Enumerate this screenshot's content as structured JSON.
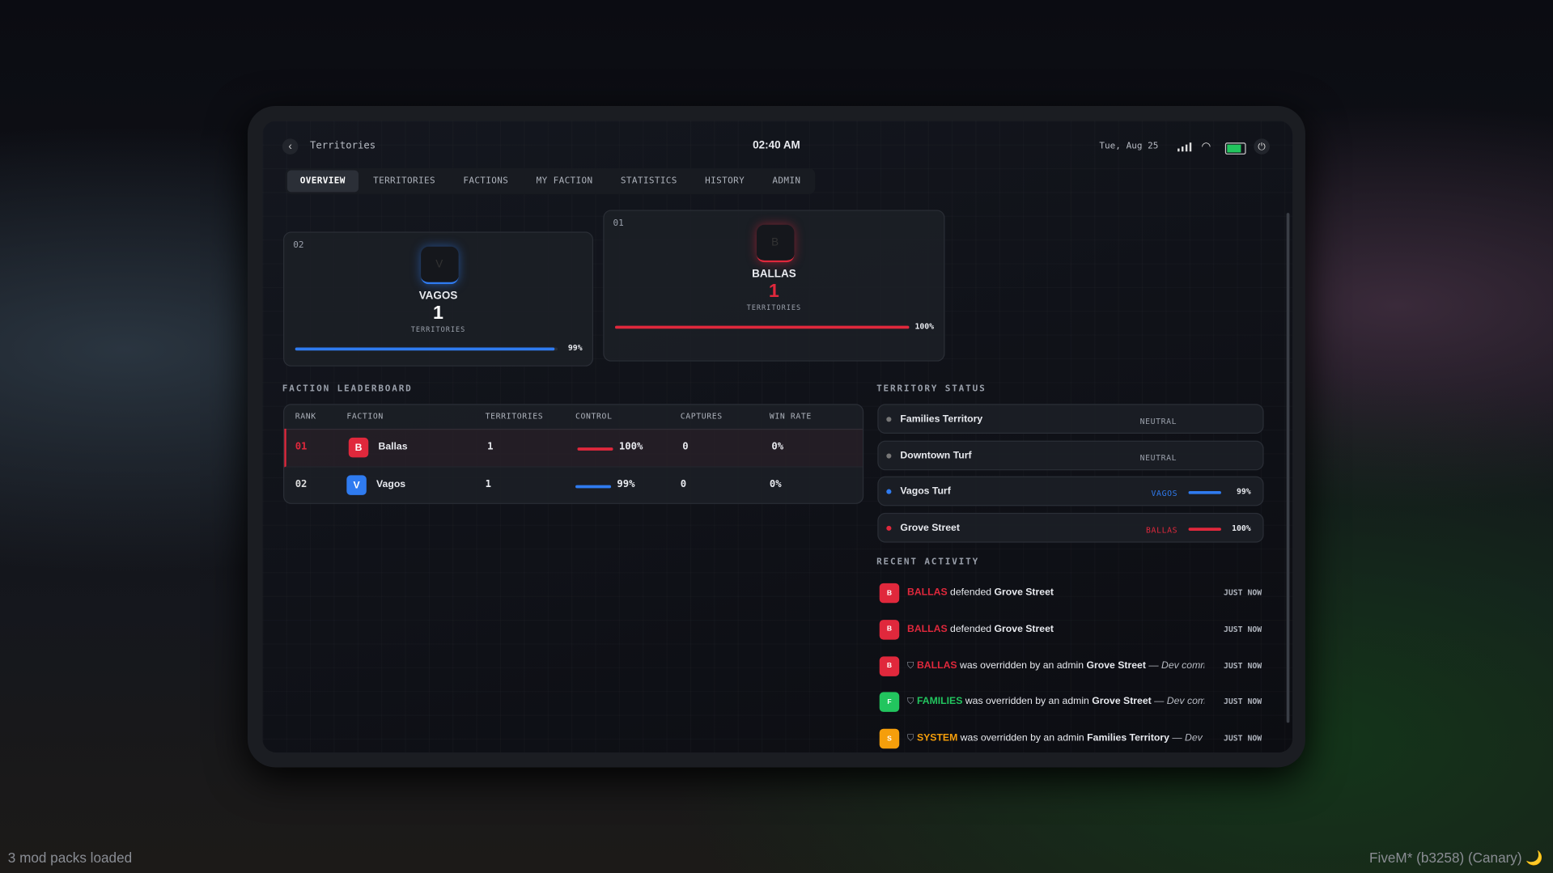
{
  "header": {
    "title": "Territories",
    "time": "02:40 AM",
    "date": "Tue, Aug 25"
  },
  "tabs": {
    "items": [
      "OVERVIEW",
      "TERRITORIES",
      "FACTIONS",
      "MY FACTION",
      "STATISTICS",
      "HISTORY",
      "ADMIN"
    ],
    "active": 0
  },
  "podium": [
    {
      "rank": "02",
      "letter": "V",
      "name": "VAGOS",
      "territories": 1,
      "territories_label": "TERRITORIES",
      "control": 99,
      "control_label": "99%",
      "color": "#2f7bf0"
    },
    {
      "rank": "01",
      "letter": "B",
      "name": "BALLAS",
      "territories": 1,
      "territories_label": "TERRITORIES",
      "control": 100,
      "control_label": "100%",
      "color": "#e0283c"
    }
  ],
  "leaderboard": {
    "title": "FACTION LEADERBOARD",
    "columns": [
      "RANK",
      "FACTION",
      "TERRITORIES",
      "CONTROL",
      "CAPTURES",
      "WIN RATE"
    ],
    "rows": [
      {
        "rank": "01",
        "letter": "B",
        "faction": "Ballas",
        "territories": 1,
        "control": 100,
        "control_label": "100%",
        "captures": 0,
        "win_rate": 0,
        "win_rate_label": "0%",
        "color": "#e0283c"
      },
      {
        "rank": "02",
        "letter": "V",
        "faction": "Vagos",
        "territories": 1,
        "control": 99,
        "control_label": "99%",
        "captures": 0,
        "win_rate": 0,
        "win_rate_label": "0%",
        "color": "#2f7bf0"
      }
    ]
  },
  "territory_status": {
    "title": "TERRITORY STATUS",
    "items": [
      {
        "name": "Families Territory",
        "status": "NEUTRAL"
      },
      {
        "name": "Downtown Turf",
        "status": "NEUTRAL"
      },
      {
        "name": "Vagos Turf",
        "status": "VAGOS",
        "control": 99,
        "control_label": "99%",
        "color": "#2f7bf0"
      },
      {
        "name": "Grove Street",
        "status": "BALLAS",
        "control": 100,
        "control_label": "100%",
        "color": "#e0283c"
      }
    ]
  },
  "recent_activity": {
    "title": "RECENT ACTIVITY",
    "items": [
      {
        "letter": "B",
        "faction": "BALLAS",
        "action": "defended",
        "target": "Grove Street",
        "time": "JUST NOW",
        "color": "#e0283c"
      },
      {
        "letter": "B",
        "faction": "BALLAS",
        "action": "defended",
        "target": "Grove Street",
        "time": "JUST NOW",
        "color": "#e0283c"
      },
      {
        "letter": "B",
        "faction": "BALLAS",
        "action": "was overridden by an admin",
        "target": "Grove Street",
        "note": "— Dev comm...",
        "time": "JUST NOW",
        "color": "#e0283c"
      },
      {
        "letter": "F",
        "faction": "FAMILIES",
        "action": "was overridden by an admin",
        "target": "Grove Street",
        "note": "— Dev com...",
        "time": "JUST NOW",
        "color": "#22c55e"
      },
      {
        "letter": "S",
        "faction": "SYSTEM",
        "action": "was overridden by an admin",
        "target": "Families Territory",
        "note": "— Dev c...",
        "time": "JUST NOW",
        "color": "#f59e0b"
      }
    ]
  },
  "footer": {
    "left": "3 mod packs loaded",
    "right": "FiveM* (b3258) (Canary) 🌙"
  }
}
